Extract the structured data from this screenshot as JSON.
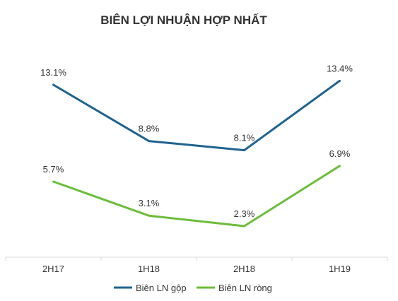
{
  "chart_data": {
    "type": "line",
    "title": "BIÊN LỢI NHUẬN HỢP NHẤT",
    "categories": [
      "2H17",
      "1H18",
      "2H18",
      "1H19"
    ],
    "series": [
      {
        "name": "Biên LN gộp",
        "values": [
          13.1,
          8.8,
          8.1,
          13.4
        ],
        "labels": [
          "13.1%",
          "8.8%",
          "8.1%",
          "13.4%"
        ],
        "color": "#1f6391"
      },
      {
        "name": "Biên LN ròng",
        "values": [
          5.7,
          3.1,
          2.3,
          6.9
        ],
        "labels": [
          "5.7%",
          "3.1%",
          "2.3%",
          "6.9%"
        ],
        "color": "#6cbd3a"
      }
    ],
    "ylim": [
      0,
      17
    ],
    "unit": "%",
    "grid": false,
    "legend_position": "bottom",
    "axis_color": "#d9d9d9"
  }
}
